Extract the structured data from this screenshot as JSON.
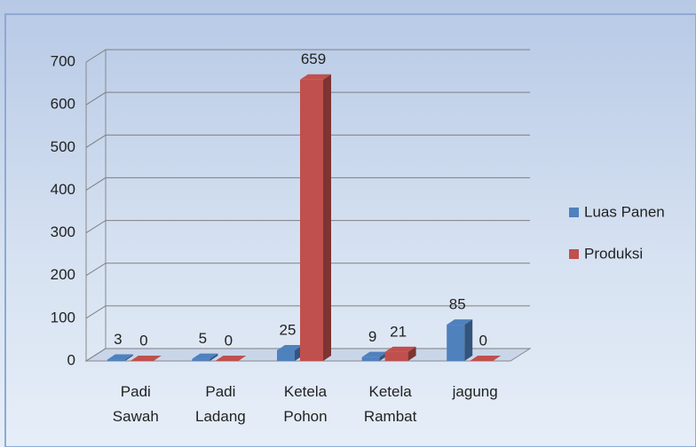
{
  "chart_data": {
    "type": "bar3d",
    "categories": [
      "Padi Sawah",
      "Padi Ladang",
      "Ketela Pohon",
      "Ketela Rambat",
      "jagung"
    ],
    "series": [
      {
        "name": "Luas Panen",
        "color": "#4f81bd",
        "values": [
          3,
          5,
          25,
          9,
          85
        ]
      },
      {
        "name": "Produksi",
        "color": "#c0504d",
        "values": [
          0,
          0,
          659,
          21,
          0
        ]
      }
    ],
    "ylim": [
      0,
      700
    ],
    "yticks": [
      0,
      100,
      200,
      300,
      400,
      500,
      600,
      700
    ],
    "grid": true,
    "legend": "right"
  }
}
